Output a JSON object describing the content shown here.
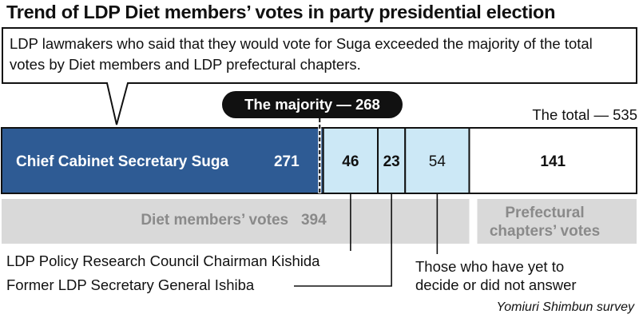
{
  "chart_data": {
    "type": "bar",
    "orientation": "horizontal-stacked",
    "title": "Trend of LDP Diet members’ votes in party presidential election",
    "subtitle": "LDP lawmakers who said that they would vote for Suga exceeded the majority of the total votes by Diet members and LDP prefectural chapters.",
    "total": 535,
    "total_label": "The total — 535",
    "majority": 268,
    "majority_label": "The majority — 268",
    "segments": [
      {
        "label": "Chief Cabinet Secretary Suga",
        "value": 271,
        "color": "#2e5b94"
      },
      {
        "label": "LDP Policy Research Council Chairman Kishida",
        "value": 46,
        "color": "#cce8f6"
      },
      {
        "label": "Former LDP Secretary General Ishiba",
        "value": 23,
        "color": "#cce8f6"
      },
      {
        "label": "Those who have yet to decide or did not answer",
        "value": 54,
        "color": "#cce8f6"
      },
      {
        "label": "",
        "value": 141,
        "color": "#ffffff"
      }
    ],
    "groups": [
      {
        "label": "Diet members’ votes",
        "value": 394
      },
      {
        "label": "Prefectural chapters’ votes"
      }
    ],
    "source": "Yomiuri Shimbun survey"
  },
  "colors": {
    "suga": "#2e5b94",
    "candidates": "#cce8f6",
    "group_band": "#d9d9d9",
    "group_text": "#8a8a8a",
    "pill": "#111111"
  }
}
